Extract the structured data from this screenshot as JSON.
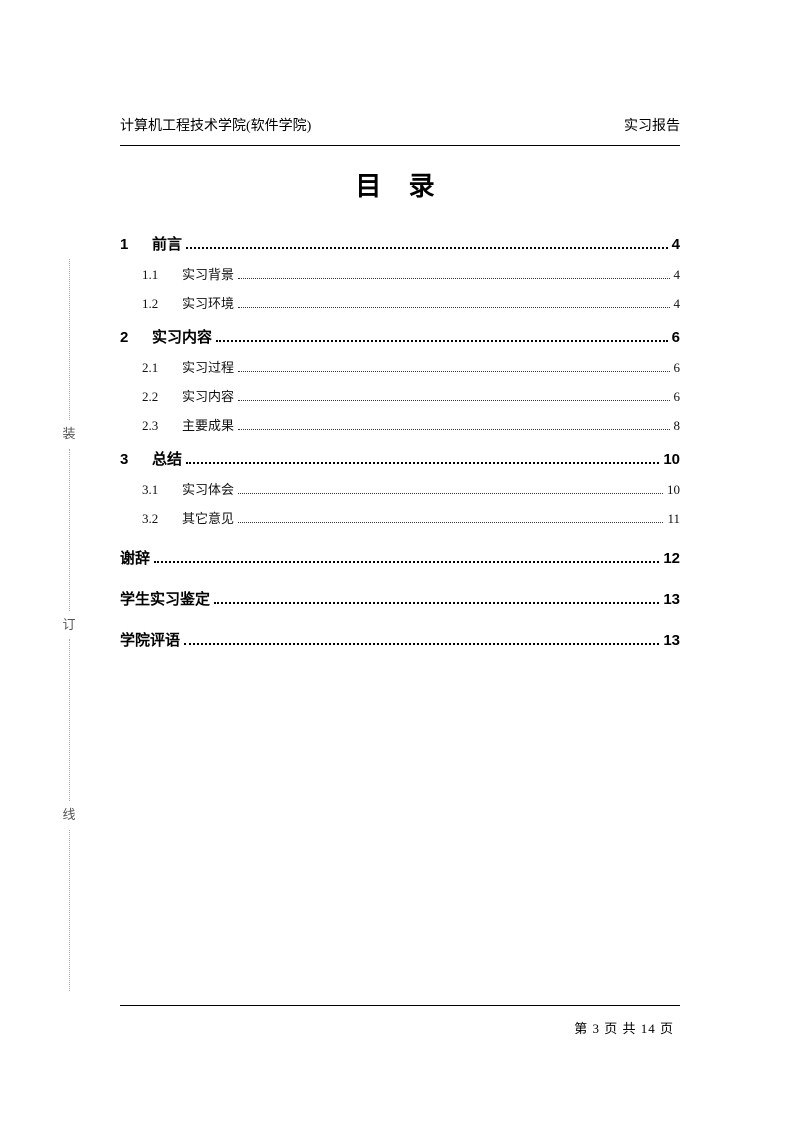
{
  "header": {
    "left": "计算机工程技术学院(软件学院)",
    "right": "实习报告"
  },
  "title": "目 录",
  "binding": {
    "c1": "装",
    "c2": "订",
    "c3": "线"
  },
  "toc": [
    {
      "level": 1,
      "num": "1",
      "label": "前言",
      "page": "4"
    },
    {
      "level": 2,
      "num": "1.1",
      "label": "实习背景",
      "page": "4"
    },
    {
      "level": 2,
      "num": "1.2",
      "label": "实习环境",
      "page": "4"
    },
    {
      "level": 1,
      "num": "2",
      "label": "实习内容",
      "page": "6"
    },
    {
      "level": 2,
      "num": "2.1",
      "label": "实习过程",
      "page": "6"
    },
    {
      "level": 2,
      "num": "2.2",
      "label": "实习内容",
      "page": "6"
    },
    {
      "level": 2,
      "num": "2.3",
      "label": "主要成果",
      "page": "8"
    },
    {
      "level": 1,
      "num": "3",
      "label": "总结",
      "page": "10"
    },
    {
      "level": 2,
      "num": "3.1",
      "label": "实习体会",
      "page": "10"
    },
    {
      "level": 2,
      "num": "3.2",
      "label": "其它意见",
      "page": "11"
    },
    {
      "level": 0,
      "num": "",
      "label": "谢辞",
      "page": "12"
    },
    {
      "level": 0,
      "num": "",
      "label": "学生实习鉴定",
      "page": "13"
    },
    {
      "level": 0,
      "num": "",
      "label": "学院评语",
      "page": "13"
    }
  ],
  "footer": "第 3 页 共 14 页"
}
